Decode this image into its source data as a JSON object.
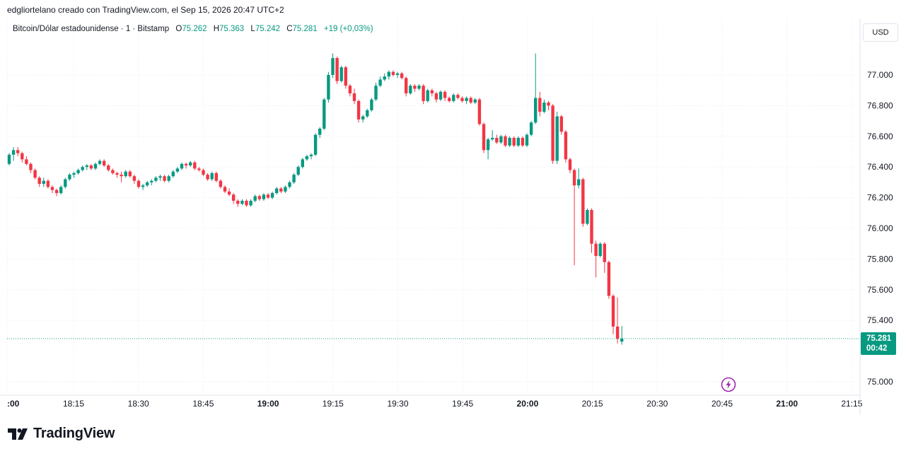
{
  "header": {
    "credit": "edgliortelano creado con TradingView.com, el Sep 15, 2026 20:47 UTC+2"
  },
  "legend": {
    "symbol": "Bitcoin/Dólar estadounidense · 1 · Bitstamp",
    "o_label": "O",
    "o_value": "75.262",
    "h_label": "H",
    "h_value": "75.363",
    "l_label": "L",
    "l_value": "75.242",
    "c_label": "C",
    "c_value": "75.281",
    "change": "+19 (+0,03%)"
  },
  "toolbar": {
    "currency": "USD"
  },
  "price_tag": {
    "price": "75.281",
    "countdown": "00:42"
  },
  "brand": {
    "name": "TradingView"
  },
  "colors": {
    "up": "#089981",
    "down": "#f23645",
    "grid": "#f0f3fa",
    "text": "#131722",
    "accent": "#9c27b0"
  },
  "icons": {
    "brand": "tradingview-logo-icon",
    "alert": "lightning-bolt-icon"
  },
  "chart_data": {
    "type": "candlestick",
    "x_axis": {
      "tick_labels": [
        ":00",
        "18:15",
        "18:30",
        "18:45",
        "19:00",
        "19:15",
        "19:30",
        "19:45",
        "20:00",
        "20:15",
        "20:30",
        "20:45",
        "21:00",
        "21:15"
      ],
      "bold_labels": [
        ":00",
        "19:00",
        "20:00",
        "21:00"
      ]
    },
    "y_axis": {
      "tick_labels": [
        "77.000",
        "76.800",
        "76.600",
        "76.400",
        "76.200",
        "76.000",
        "75.800",
        "75.600",
        "75.400",
        "75.000"
      ],
      "range": [
        74.97,
        77.14
      ]
    },
    "last_price": 75.281,
    "candles": [
      [
        76.42,
        76.49,
        76.41,
        76.48
      ],
      [
        76.48,
        76.53,
        76.44,
        76.51
      ],
      [
        76.51,
        76.53,
        76.47,
        76.49
      ],
      [
        76.49,
        76.5,
        76.43,
        76.45
      ],
      [
        76.45,
        76.47,
        76.41,
        76.42
      ],
      [
        76.42,
        76.43,
        76.36,
        76.38
      ],
      [
        76.38,
        76.39,
        76.32,
        76.33
      ],
      [
        76.33,
        76.34,
        76.27,
        76.29
      ],
      [
        76.29,
        76.33,
        76.27,
        76.31
      ],
      [
        76.31,
        76.32,
        76.26,
        76.27
      ],
      [
        76.27,
        76.28,
        76.23,
        76.25
      ],
      [
        76.25,
        76.26,
        76.21,
        76.23
      ],
      [
        76.23,
        76.28,
        76.22,
        76.27
      ],
      [
        76.27,
        76.33,
        76.26,
        76.32
      ],
      [
        76.32,
        76.36,
        76.31,
        76.35
      ],
      [
        76.35,
        76.37,
        76.33,
        76.36
      ],
      [
        76.36,
        76.39,
        76.35,
        76.38
      ],
      [
        76.38,
        76.41,
        76.37,
        76.4
      ],
      [
        76.4,
        76.42,
        76.38,
        76.41
      ],
      [
        76.41,
        76.42,
        76.38,
        76.39
      ],
      [
        76.39,
        76.43,
        76.38,
        76.42
      ],
      [
        76.42,
        76.45,
        76.41,
        76.44
      ],
      [
        76.44,
        76.45,
        76.4,
        76.41
      ],
      [
        76.41,
        76.42,
        76.37,
        76.38
      ],
      [
        76.38,
        76.39,
        76.35,
        76.36
      ],
      [
        76.36,
        76.37,
        76.33,
        76.35
      ],
      [
        76.35,
        76.37,
        76.3,
        76.34
      ],
      [
        76.34,
        76.38,
        76.33,
        76.37
      ],
      [
        76.37,
        76.38,
        76.33,
        76.34
      ],
      [
        76.34,
        76.35,
        76.29,
        76.31
      ],
      [
        76.31,
        76.32,
        76.26,
        76.27
      ],
      [
        76.27,
        76.29,
        76.25,
        76.28
      ],
      [
        76.28,
        76.31,
        76.27,
        76.3
      ],
      [
        76.3,
        76.32,
        76.28,
        76.31
      ],
      [
        76.31,
        76.34,
        76.3,
        76.33
      ],
      [
        76.33,
        76.35,
        76.31,
        76.34
      ],
      [
        76.34,
        76.35,
        76.3,
        76.31
      ],
      [
        76.31,
        76.35,
        76.3,
        76.34
      ],
      [
        76.34,
        76.38,
        76.33,
        76.37
      ],
      [
        76.37,
        76.4,
        76.36,
        76.39
      ],
      [
        76.39,
        76.43,
        76.38,
        76.42
      ],
      [
        76.42,
        76.43,
        76.39,
        76.41
      ],
      [
        76.41,
        76.44,
        76.4,
        76.43
      ],
      [
        76.43,
        76.44,
        76.38,
        76.39
      ],
      [
        76.39,
        76.4,
        76.37,
        76.38
      ],
      [
        76.38,
        76.39,
        76.34,
        76.35
      ],
      [
        76.35,
        76.36,
        76.31,
        76.32
      ],
      [
        76.32,
        76.37,
        76.31,
        76.36
      ],
      [
        76.36,
        76.37,
        76.3,
        76.31
      ],
      [
        76.31,
        76.32,
        76.26,
        76.27
      ],
      [
        76.27,
        76.28,
        76.23,
        76.24
      ],
      [
        76.24,
        76.26,
        76.21,
        76.22
      ],
      [
        76.22,
        76.23,
        76.16,
        76.18
      ],
      [
        76.18,
        76.19,
        76.14,
        76.16
      ],
      [
        76.16,
        76.19,
        76.15,
        76.18
      ],
      [
        76.18,
        76.19,
        76.14,
        76.15
      ],
      [
        76.15,
        76.19,
        76.14,
        76.18
      ],
      [
        76.18,
        76.22,
        76.17,
        76.21
      ],
      [
        76.21,
        76.22,
        76.18,
        76.19
      ],
      [
        76.19,
        76.23,
        76.18,
        76.22
      ],
      [
        76.22,
        76.23,
        76.19,
        76.2
      ],
      [
        76.2,
        76.24,
        76.19,
        76.23
      ],
      [
        76.23,
        76.27,
        76.22,
        76.26
      ],
      [
        76.26,
        76.27,
        76.23,
        76.24
      ],
      [
        76.24,
        76.28,
        76.23,
        76.27
      ],
      [
        76.27,
        76.31,
        76.26,
        76.3
      ],
      [
        76.3,
        76.36,
        76.29,
        76.35
      ],
      [
        76.35,
        76.41,
        76.34,
        76.4
      ],
      [
        76.4,
        76.46,
        76.39,
        76.45
      ],
      [
        76.45,
        76.48,
        76.44,
        76.47
      ],
      [
        76.47,
        76.49,
        76.45,
        76.48
      ],
      [
        76.48,
        76.62,
        76.47,
        76.61
      ],
      [
        76.61,
        76.66,
        76.59,
        76.65
      ],
      [
        76.65,
        76.85,
        76.64,
        76.84
      ],
      [
        76.84,
        77.02,
        76.82,
        77.0
      ],
      [
        77.0,
        77.14,
        76.98,
        77.11
      ],
      [
        77.11,
        77.12,
        76.94,
        76.96
      ],
      [
        76.96,
        77.06,
        76.95,
        77.05
      ],
      [
        77.05,
        77.06,
        76.91,
        76.93
      ],
      [
        76.93,
        76.94,
        76.86,
        76.88
      ],
      [
        76.88,
        76.91,
        76.81,
        76.83
      ],
      [
        76.83,
        76.84,
        76.69,
        76.71
      ],
      [
        76.71,
        76.74,
        76.69,
        76.73
      ],
      [
        76.73,
        76.78,
        76.72,
        76.77
      ],
      [
        76.77,
        76.85,
        76.76,
        76.84
      ],
      [
        76.84,
        76.95,
        76.83,
        76.93
      ],
      [
        76.93,
        76.99,
        76.92,
        76.97
      ],
      [
        76.97,
        77.01,
        76.96,
        76.99
      ],
      [
        76.99,
        77.03,
        76.97,
        77.02
      ],
      [
        77.02,
        77.03,
        76.99,
        77.0
      ],
      [
        77.0,
        77.02,
        76.98,
        77.01
      ],
      [
        77.01,
        77.02,
        76.97,
        76.98
      ],
      [
        76.98,
        76.99,
        76.86,
        76.88
      ],
      [
        76.88,
        76.94,
        76.87,
        76.93
      ],
      [
        76.93,
        76.94,
        76.89,
        76.91
      ],
      [
        76.91,
        76.94,
        76.9,
        76.93
      ],
      [
        76.93,
        76.94,
        76.81,
        76.83
      ],
      [
        76.83,
        76.91,
        76.82,
        76.9
      ],
      [
        76.9,
        76.91,
        76.86,
        76.88
      ],
      [
        76.88,
        76.89,
        76.82,
        76.84
      ],
      [
        76.84,
        76.9,
        76.83,
        76.89
      ],
      [
        76.89,
        76.9,
        76.83,
        76.85
      ],
      [
        76.85,
        76.86,
        76.82,
        76.83
      ],
      [
        76.83,
        76.88,
        76.82,
        76.87
      ],
      [
        76.87,
        76.88,
        76.84,
        76.85
      ],
      [
        76.85,
        76.86,
        76.82,
        76.83
      ],
      [
        76.83,
        76.86,
        76.81,
        76.85
      ],
      [
        76.85,
        76.86,
        76.81,
        76.82
      ],
      [
        76.82,
        76.85,
        76.81,
        76.84
      ],
      [
        76.84,
        76.85,
        76.67,
        76.68
      ],
      [
        76.68,
        76.69,
        76.49,
        76.51
      ],
      [
        76.51,
        76.59,
        76.45,
        76.58
      ],
      [
        76.58,
        76.64,
        76.57,
        76.59
      ],
      [
        76.59,
        76.61,
        76.55,
        76.56
      ],
      [
        76.56,
        76.61,
        76.55,
        76.6
      ],
      [
        76.6,
        76.61,
        76.53,
        76.54
      ],
      [
        76.54,
        76.6,
        76.53,
        76.59
      ],
      [
        76.59,
        76.6,
        76.53,
        76.54
      ],
      [
        76.54,
        76.6,
        76.53,
        76.59
      ],
      [
        76.59,
        76.6,
        76.53,
        76.54
      ],
      [
        76.54,
        76.62,
        76.53,
        76.61
      ],
      [
        76.61,
        76.7,
        76.6,
        76.69
      ],
      [
        76.69,
        77.14,
        76.68,
        76.85
      ],
      [
        76.85,
        76.89,
        76.73,
        76.76
      ],
      [
        76.76,
        76.84,
        76.75,
        76.82
      ],
      [
        76.82,
        76.83,
        76.77,
        76.8
      ],
      [
        76.8,
        76.81,
        76.42,
        76.44
      ],
      [
        76.44,
        76.76,
        76.42,
        76.73
      ],
      [
        76.73,
        76.74,
        76.61,
        76.63
      ],
      [
        76.63,
        76.64,
        76.43,
        76.45
      ],
      [
        76.45,
        76.46,
        76.36,
        76.38
      ],
      [
        76.38,
        76.39,
        75.76,
        76.28
      ],
      [
        76.28,
        76.39,
        76.26,
        76.32
      ],
      [
        76.32,
        76.33,
        76.01,
        76.03
      ],
      [
        76.03,
        76.13,
        76.02,
        76.12
      ],
      [
        76.12,
        76.13,
        75.84,
        75.9
      ],
      [
        75.9,
        75.92,
        75.68,
        75.82
      ],
      [
        75.82,
        75.91,
        75.81,
        75.9
      ],
      [
        75.9,
        75.91,
        75.71,
        75.78
      ],
      [
        75.78,
        75.79,
        75.54,
        75.56
      ],
      [
        75.56,
        75.57,
        75.31,
        75.36
      ],
      [
        75.36,
        75.55,
        75.25,
        75.28
      ],
      [
        75.262,
        75.363,
        75.242,
        75.281
      ]
    ]
  }
}
